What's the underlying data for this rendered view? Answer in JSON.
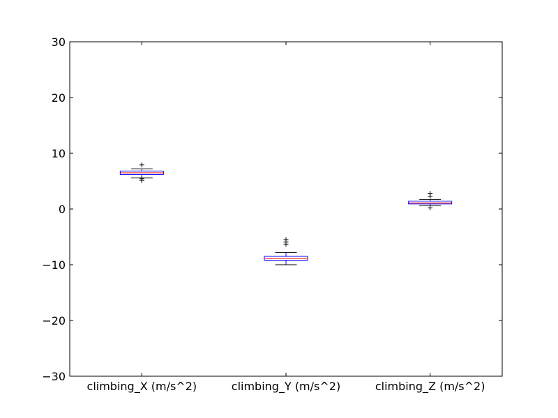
{
  "chart_data": {
    "type": "box",
    "title": "",
    "xlabel": "",
    "ylabel": "",
    "ylim": [
      -30,
      30
    ],
    "yticks": [
      30,
      20,
      10,
      0,
      -10,
      -20,
      -30
    ],
    "ytick_labels": [
      "30",
      "20",
      "10",
      "0",
      "−10",
      "−20",
      "−30"
    ],
    "grid": false,
    "legend": "none",
    "categories": [
      "climbing_X (m/s^2)",
      "climbing_Y (m/s^2)",
      "climbing_Z (m/s^2)"
    ],
    "boxes": [
      {
        "whisker_low": 5.6,
        "q1": 6.2,
        "median": 6.5,
        "q3": 6.8,
        "whisker_high": 7.2,
        "outliers": [
          7.9,
          5.4,
          5.1
        ]
      },
      {
        "whisker_low": -10.0,
        "q1": -9.2,
        "median": -8.9,
        "q3": -8.5,
        "whisker_high": -7.8,
        "outliers": [
          -5.5,
          -5.9,
          -6.3
        ]
      },
      {
        "whisker_low": 0.6,
        "q1": 0.9,
        "median": 1.1,
        "q3": 1.4,
        "whisker_high": 1.7,
        "outliers": [
          2.3,
          2.8,
          0.2
        ]
      }
    ],
    "colors": {
      "box": "#0000ff",
      "median": "#ff0000",
      "whisker": "#0000ff",
      "cap": "#000000",
      "flier": "#000000",
      "axes": "#000000"
    }
  }
}
